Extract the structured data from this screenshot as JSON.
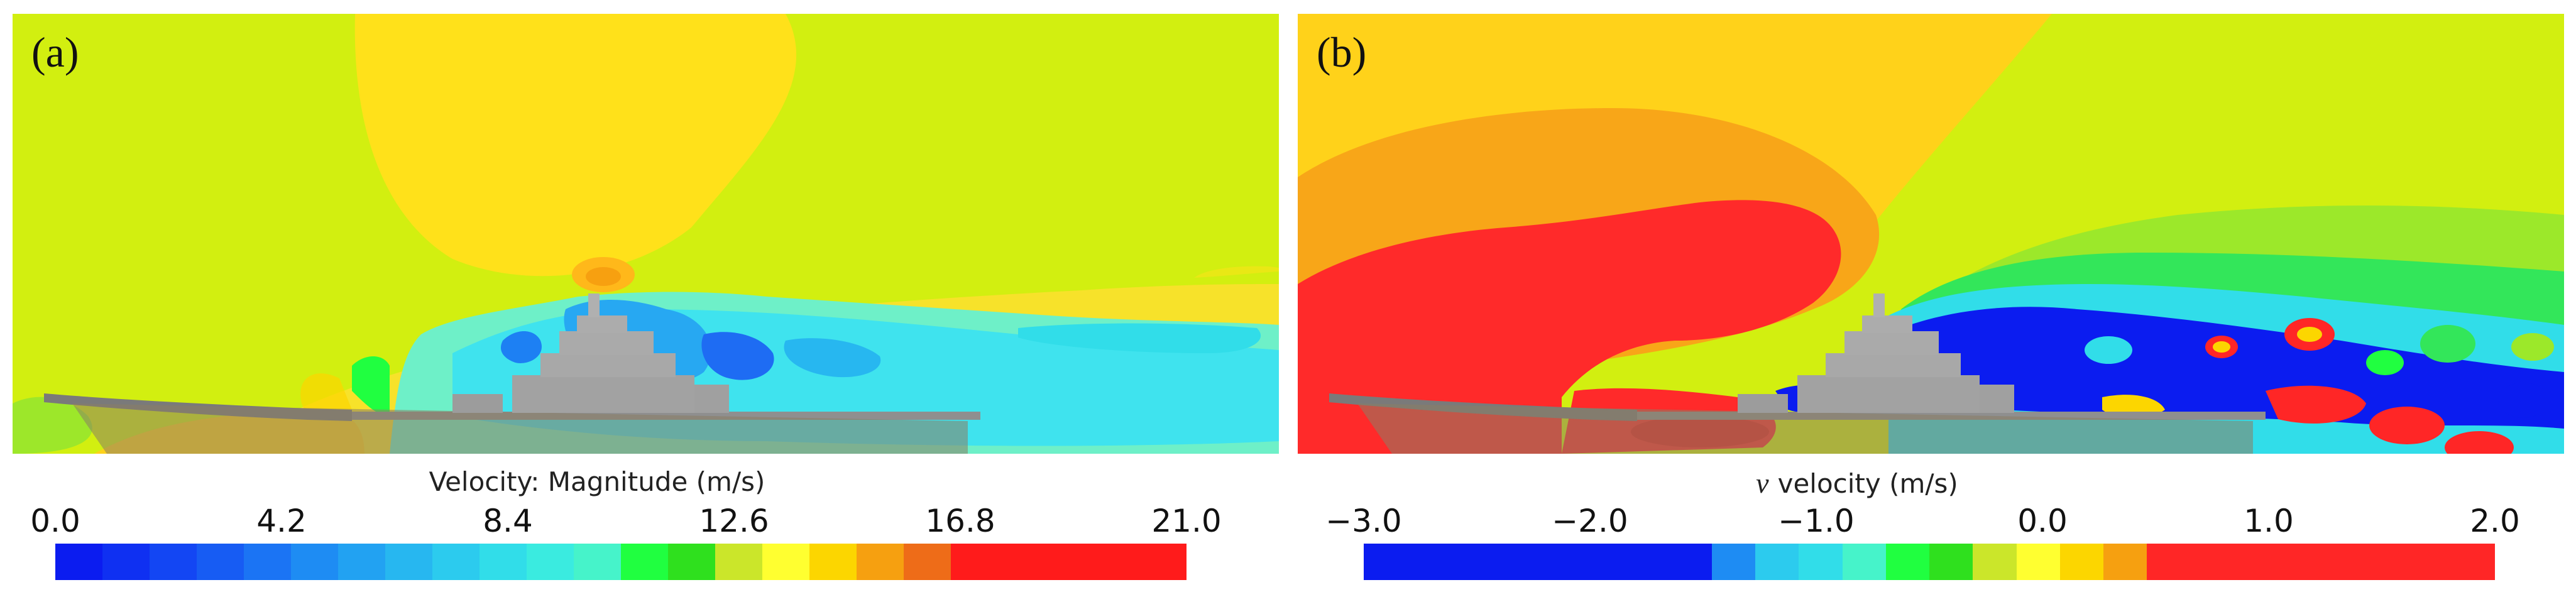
{
  "chart_data": [
    {
      "type": "contour",
      "panel_label": "(a)",
      "title": "Velocity: Magnitude (m/s)",
      "quantity": "Velocity magnitude",
      "unit": "m/s",
      "range": [
        0.0,
        21.0
      ],
      "tick_labels": [
        "0.0",
        "4.2",
        "8.4",
        "12.6",
        "16.8",
        "21.0"
      ],
      "colors": [
        "#0b1cf0",
        "#0f30f2",
        "#1346f3",
        "#175cf3",
        "#1b74f4",
        "#1e8cf3",
        "#22a2f2",
        "#27b7f0",
        "#2ccbee",
        "#31dde9",
        "#3aebe0",
        "#46f3ca",
        "#20ff40",
        "#2fe01e",
        "#cbe62a",
        "#ffff30",
        "#fcd600",
        "#f6a010",
        "#ee6c18",
        "#ff1b1b",
        "#ff1b1b",
        "#ff1b1b",
        "#ff1b1b",
        "#ff1b1b"
      ]
    },
    {
      "type": "contour",
      "panel_label": "(b)",
      "title": "velocity (m/s)",
      "component_symbol": "v",
      "quantity": "Vertical velocity component",
      "unit": "m/s",
      "range": [
        -3.0,
        2.0
      ],
      "tick_labels": [
        "−3.0",
        "−2.0",
        "−1.0",
        "0.0",
        "1.0",
        "2.0"
      ],
      "colors": [
        "#0b1cf0",
        "#0b1cf0",
        "#0b1cf0",
        "#0b1cf0",
        "#0b1cf0",
        "#0b1cf0",
        "#0b1cf0",
        "#0b1cf0",
        "#1e8cf3",
        "#2ccbee",
        "#31dde9",
        "#46f3ca",
        "#20ff40",
        "#2fe01e",
        "#cbe62a",
        "#ffff30",
        "#fcd600",
        "#f6a010",
        "#ff2626",
        "#ff2626",
        "#ff2626",
        "#ff2626",
        "#ff2626",
        "#ff2626",
        "#ff2626",
        "#ff2626"
      ]
    }
  ]
}
